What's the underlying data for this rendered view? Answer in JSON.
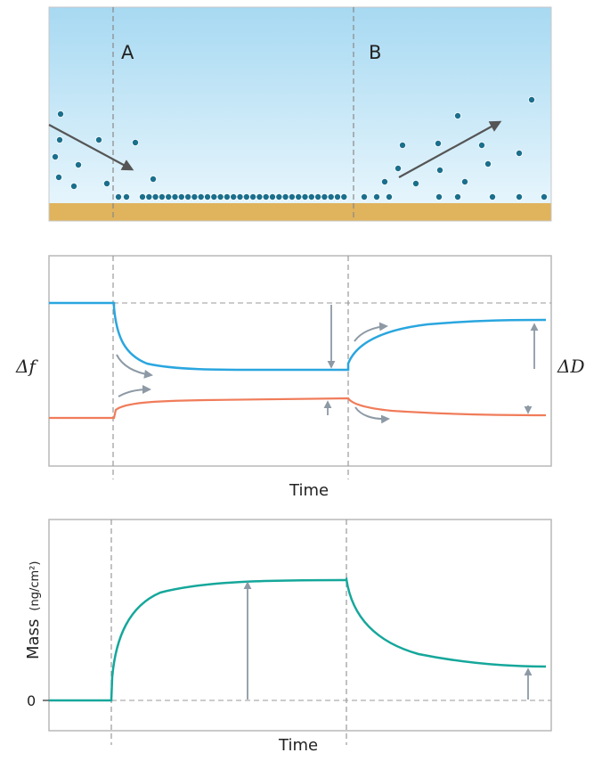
{
  "colors": {
    "water_top": "#a7d9f2",
    "water_bottom": "#e4f4fc",
    "substrate": "#e0b35d",
    "particle": "#1a6f8c",
    "arrow_dark": "#555555",
    "arrow_light": "#8d9aa5",
    "freq_line": "#2aa6df",
    "diss_line": "#f07c5a",
    "mass_line": "#15a79b",
    "frame": "#b9b9b9",
    "guide": "#999999"
  },
  "panel_top": {
    "label_a": "A",
    "label_b": "B"
  },
  "panel_middle": {
    "left_label": "Δf",
    "right_label": "ΔD",
    "x_label": "Time"
  },
  "panel_bottom": {
    "y_label_main": "Mass",
    "y_label_unit": "(ng/cm²)",
    "zero_tick": "0",
    "x_label": "Time"
  }
}
